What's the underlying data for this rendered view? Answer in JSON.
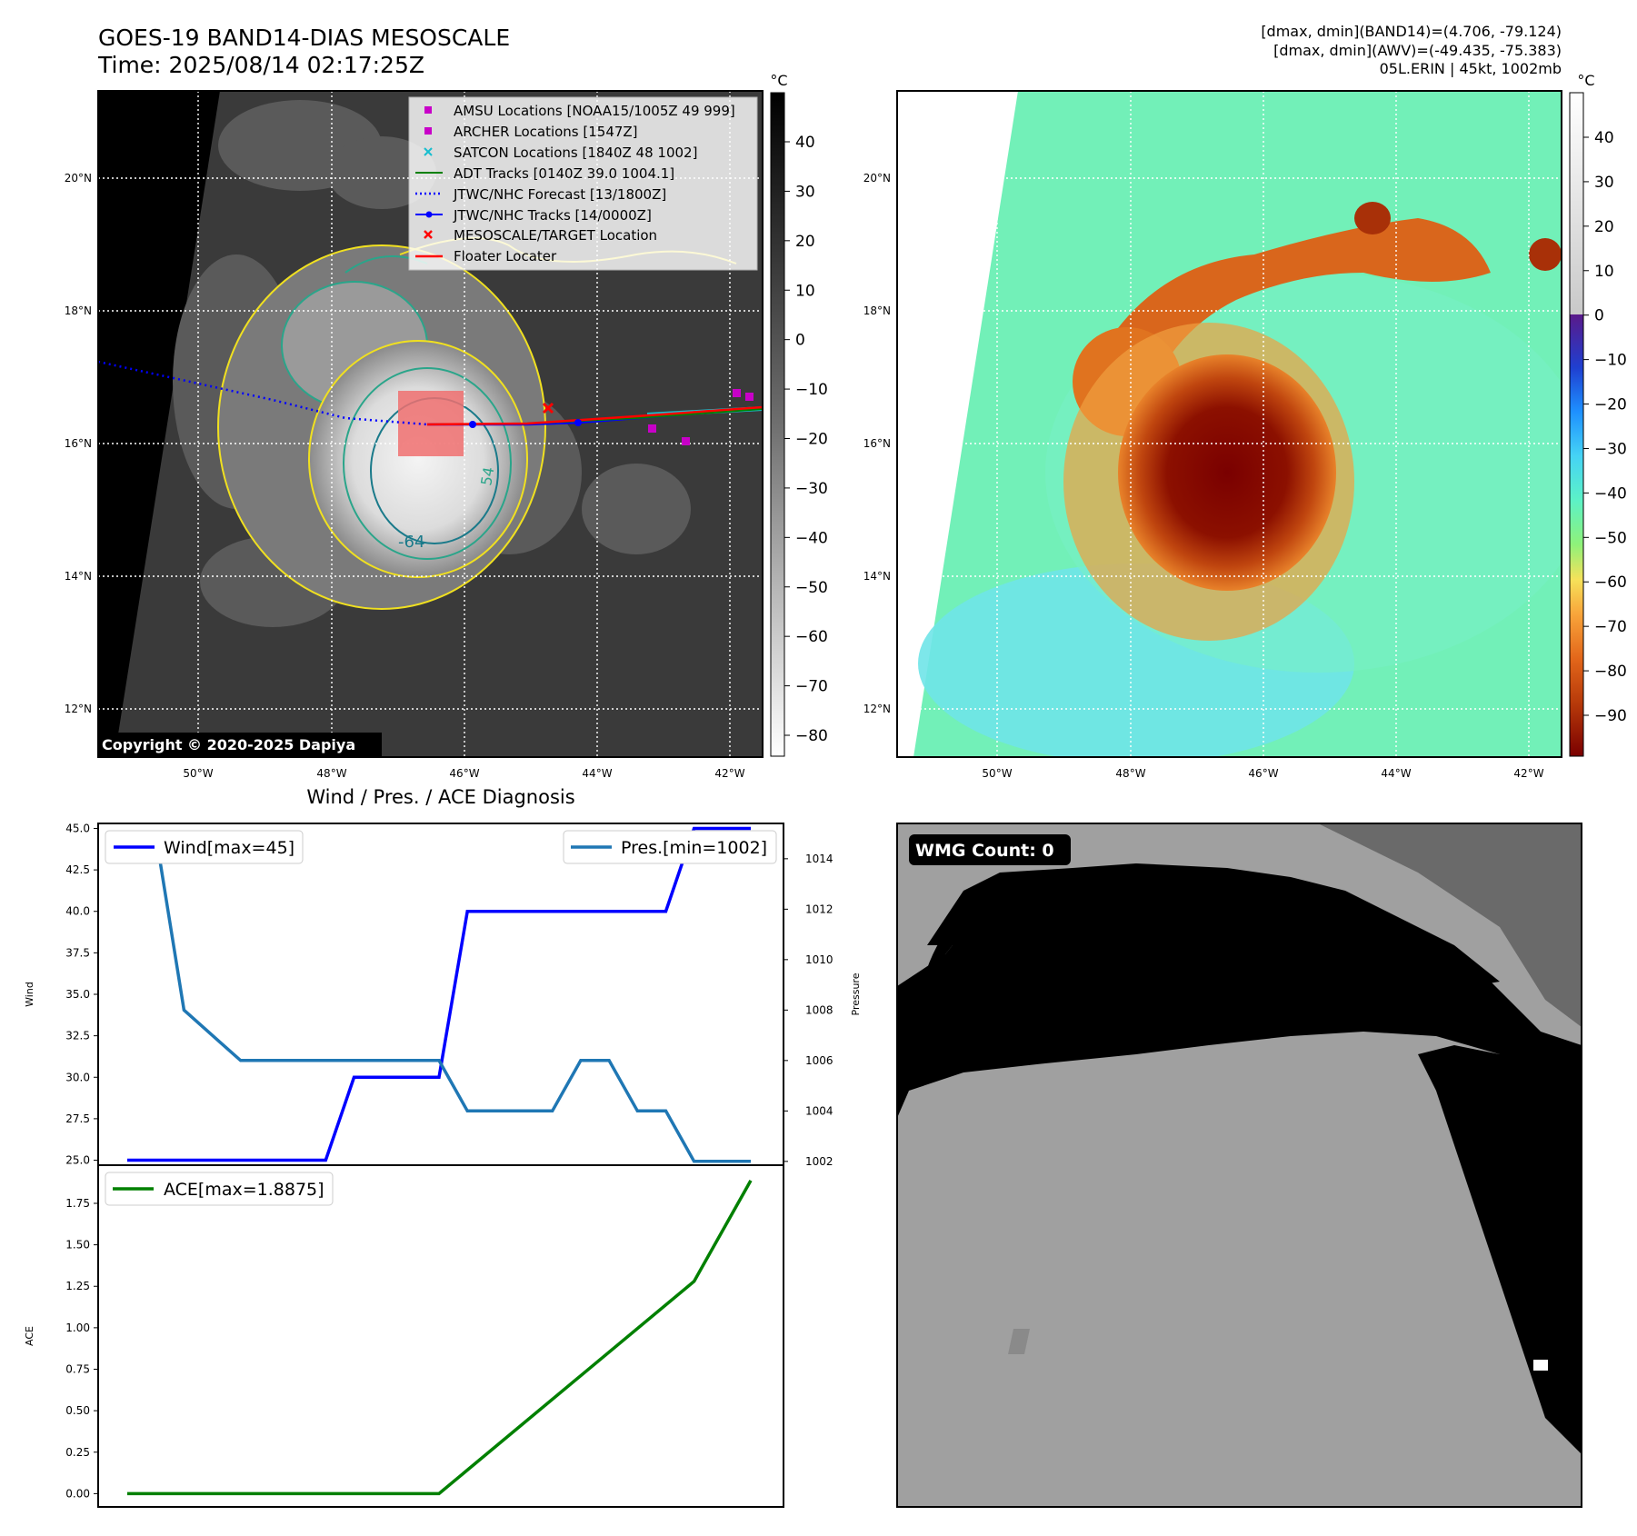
{
  "header": {
    "title_line1": "GOES-19 BAND14-DIAS MESOSCALE",
    "title_line2": "Time: 2025/08/14 02:17:25Z",
    "info_line1": "[dmax, dmin](BAND14)=(4.706, -79.124)",
    "info_line2": "[dmax, dmin](AWV)=(-49.435, -75.383)",
    "info_line3": "05L.ERIN | 45kt, 1002mb"
  },
  "map": {
    "lat_ticks": [
      "20°N",
      "18°N",
      "16°N",
      "14°N",
      "12°N"
    ],
    "lon_ticks": [
      "50°W",
      "48°W",
      "46°W",
      "44°W",
      "42°W"
    ],
    "copyright": "Copyright © 2020-2025 Dapiya",
    "contour_labels": [
      "54",
      "-64"
    ],
    "legend": [
      {
        "label": "AMSU Locations [NOAA15/1005Z 49 999]",
        "color": "#c800c8",
        "marker": "square"
      },
      {
        "label": "ARCHER Locations [1547Z]",
        "color": "#c800c8",
        "marker": "square"
      },
      {
        "label": "SATCON Locations [1840Z 48 1002]",
        "color": "#17becf",
        "marker": "x"
      },
      {
        "label": "ADT Tracks [0140Z 39.0 1004.1]",
        "color": "#008000",
        "marker": "line"
      },
      {
        "label": "JTWC/NHC Forecast [13/1800Z]",
        "color": "#0000ff",
        "marker": "dotted"
      },
      {
        "label": "JTWC/NHC Tracks [14/0000Z]",
        "color": "#0000ff",
        "marker": "line-dot"
      },
      {
        "label": "MESOSCALE/TARGET Location",
        "color": "#ff0000",
        "marker": "x"
      },
      {
        "label": "Floater Locater",
        "color": "#ff0000",
        "marker": "line"
      }
    ]
  },
  "colorbar_left": {
    "unit": "°C",
    "ticks": [
      "40",
      "30",
      "20",
      "10",
      "0",
      "−10",
      "−20",
      "−30",
      "−40",
      "−50",
      "−60",
      "−70",
      "−80"
    ]
  },
  "colorbar_right": {
    "unit": "°C",
    "ticks": [
      "40",
      "30",
      "20",
      "10",
      "0",
      "−10",
      "−20",
      "−30",
      "−40",
      "−50",
      "−60",
      "−70",
      "−80",
      "−90"
    ]
  },
  "wmg": {
    "label": "WMG Count: 0"
  },
  "chart_data": [
    {
      "type": "line",
      "title": "Wind / Pres. / ACE Diagnosis",
      "ylabel": "Wind",
      "ylabel_right": "Pressure",
      "y_ticks": [
        "45.0",
        "42.5",
        "40.0",
        "37.5",
        "35.0",
        "32.5",
        "30.0",
        "27.5",
        "25.0"
      ],
      "y_ticks_right": [
        "1014",
        "1012",
        "1010",
        "1008",
        "1006",
        "1004",
        "1002"
      ],
      "ylim": [
        24.7,
        45.3
      ],
      "ylim_right": [
        1001.85,
        1015.4
      ],
      "series": [
        {
          "name": "Wind[max=45]",
          "color": "#0000ff",
          "x": [
            0,
            1,
            2,
            3,
            4,
            5,
            6,
            7,
            8,
            9,
            10,
            11,
            12,
            13,
            14,
            15,
            16,
            17,
            18,
            19,
            20,
            21,
            22
          ],
          "values": [
            25,
            25,
            25,
            25,
            25,
            25,
            25,
            25,
            30,
            30,
            30,
            30,
            40,
            40,
            40,
            40,
            40,
            40,
            40,
            40,
            45,
            45,
            45
          ]
        },
        {
          "name": "Pres.[min=1002]",
          "color": "#1f77b4",
          "x": [
            0,
            1,
            2,
            3,
            4,
            5,
            6,
            7,
            8,
            9,
            10,
            11,
            12,
            13,
            14,
            15,
            16,
            17,
            18,
            19,
            20,
            21,
            22
          ],
          "values": [
            1015,
            1015,
            1008,
            1007,
            1006,
            1006,
            1006,
            1006,
            1006,
            1006,
            1006,
            1006,
            1004,
            1004,
            1004,
            1004,
            1006,
            1006,
            1004,
            1004,
            1002,
            1002,
            1002
          ]
        }
      ]
    },
    {
      "type": "line",
      "ylabel": "ACE",
      "y_ticks": [
        "1.75",
        "1.50",
        "1.25",
        "1.00",
        "0.75",
        "0.50",
        "0.25",
        "0.00"
      ],
      "ylim": [
        -0.08,
        1.98
      ],
      "series": [
        {
          "name": "ACE[max=1.8875]",
          "color": "#008000",
          "x": [
            0,
            11,
            20,
            22
          ],
          "values": [
            0.0,
            0.0,
            1.28,
            1.8875
          ]
        }
      ]
    }
  ]
}
